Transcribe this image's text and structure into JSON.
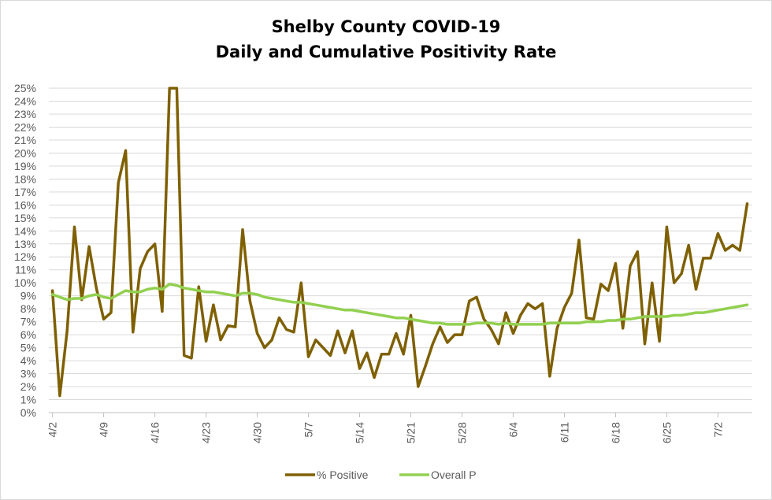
{
  "chart_data": {
    "type": "line",
    "title_line1": "Shelby County COVID-19",
    "title_line2": "Daily and Cumulative Positivity Rate",
    "xlabel": "",
    "ylabel": "",
    "ylim": [
      0,
      25
    ],
    "y_ticks": [
      "0%",
      "1%",
      "2%",
      "3%",
      "4%",
      "5%",
      "6%",
      "7%",
      "8%",
      "9%",
      "10%",
      "11%",
      "12%",
      "13%",
      "14%",
      "15%",
      "16%",
      "17%",
      "18%",
      "19%",
      "20%",
      "21%",
      "22%",
      "23%",
      "24%",
      "25%"
    ],
    "x_tick_labels": [
      "4/2",
      "4/9",
      "4/16",
      "4/23",
      "4/30",
      "5/7",
      "5/14",
      "5/21",
      "5/28",
      "6/4",
      "6/11",
      "6/18",
      "6/25",
      "7/2"
    ],
    "x_tick_day_index": [
      0,
      7,
      14,
      21,
      28,
      35,
      42,
      49,
      56,
      63,
      70,
      77,
      84,
      91
    ],
    "grid": true,
    "legend_position": "bottom",
    "series": [
      {
        "name": "% Positive",
        "color": "#7f6000",
        "values": [
          9.4,
          1.3,
          6.3,
          14.3,
          8.7,
          12.8,
          9.6,
          7.2,
          7.7,
          17.7,
          20.2,
          6.2,
          11.1,
          12.4,
          13.0,
          7.8,
          25.0,
          25.0,
          4.4,
          4.2,
          9.7,
          5.5,
          8.3,
          5.6,
          6.7,
          6.6,
          14.1,
          8.6,
          6.1,
          5.0,
          5.6,
          7.3,
          6.4,
          6.2,
          10.0,
          4.3,
          5.6,
          5.0,
          4.4,
          6.3,
          4.6,
          6.3,
          3.4,
          4.6,
          2.7,
          4.5,
          4.5,
          6.1,
          4.5,
          7.5,
          2.0,
          3.6,
          5.3,
          6.6,
          5.4,
          6.0,
          6.0,
          8.6,
          8.9,
          7.2,
          6.4,
          5.3,
          7.7,
          6.1,
          7.5,
          8.4,
          8.0,
          8.4,
          2.8,
          6.5,
          8.1,
          9.2,
          13.3,
          7.3,
          7.2,
          9.9,
          9.4,
          11.5,
          6.5,
          11.3,
          12.4,
          5.3,
          10.0,
          5.5,
          14.3,
          10.0,
          10.7,
          12.9,
          9.5,
          11.9,
          11.9,
          13.8,
          12.5,
          12.9,
          12.5,
          16.1
        ],
        "clipped_above_axis_max": [
          false,
          false,
          false,
          false,
          false,
          false,
          false,
          false,
          false,
          false,
          false,
          false,
          false,
          false,
          false,
          false,
          true,
          true,
          false,
          false,
          false,
          false,
          false,
          false,
          false,
          false,
          false,
          false,
          false,
          false,
          false,
          false,
          false,
          false,
          false,
          false,
          false,
          false,
          false,
          false,
          false,
          false,
          false,
          false,
          false,
          false,
          false,
          false,
          false,
          false,
          false,
          false,
          false,
          false,
          false,
          false,
          false,
          false,
          false,
          false,
          false,
          false,
          false,
          false,
          false,
          false,
          false,
          false,
          false,
          false,
          false,
          false,
          false,
          false,
          false,
          false,
          false,
          false,
          false,
          false,
          false,
          false,
          false,
          false,
          false,
          false,
          false,
          false,
          false,
          false,
          false,
          false,
          false,
          false,
          false,
          false
        ]
      },
      {
        "name": "Overall P",
        "color": "#92d050",
        "values": [
          9.1,
          8.9,
          8.7,
          8.8,
          8.8,
          9.0,
          9.1,
          8.9,
          8.8,
          9.1,
          9.4,
          9.3,
          9.3,
          9.5,
          9.6,
          9.5,
          9.9,
          9.8,
          9.6,
          9.5,
          9.4,
          9.3,
          9.3,
          9.2,
          9.1,
          9.0,
          9.2,
          9.2,
          9.1,
          8.9,
          8.8,
          8.7,
          8.6,
          8.5,
          8.5,
          8.4,
          8.3,
          8.2,
          8.1,
          8.0,
          7.9,
          7.9,
          7.8,
          7.7,
          7.6,
          7.5,
          7.4,
          7.3,
          7.3,
          7.2,
          7.1,
          7.0,
          6.9,
          6.9,
          6.8,
          6.8,
          6.8,
          6.8,
          6.9,
          6.9,
          6.9,
          6.8,
          6.9,
          6.8,
          6.8,
          6.8,
          6.8,
          6.8,
          6.9,
          6.9,
          6.9,
          6.9,
          6.9,
          7.0,
          7.0,
          7.0,
          7.1,
          7.1,
          7.2,
          7.2,
          7.3,
          7.4,
          7.4,
          7.4,
          7.4,
          7.5,
          7.5,
          7.6,
          7.7,
          7.7,
          7.8,
          7.9,
          8.0,
          8.1,
          8.2,
          8.3
        ]
      }
    ]
  }
}
